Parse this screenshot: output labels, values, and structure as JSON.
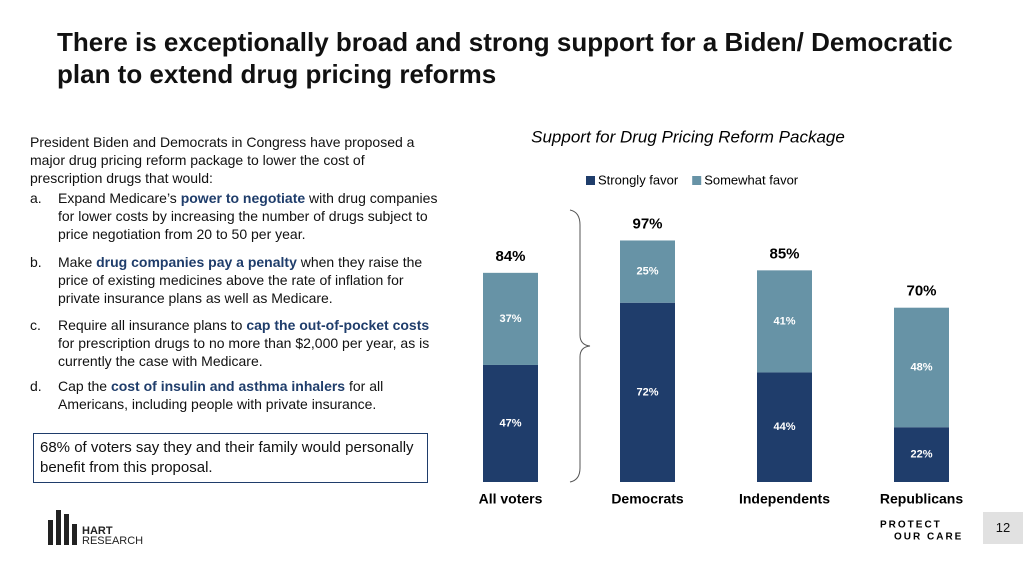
{
  "slide": {
    "title": "There is exceptionally broad and strong support for a Biden/ Democratic plan to extend drug pricing reforms",
    "intro": "President Biden and Democrats in Congress have proposed a major drug pricing reform package to lower the cost of prescription drugs that would:",
    "items": [
      {
        "marker": "a.",
        "parts": [
          "Expand Medicare’s ",
          "power to negotiate",
          " with drug companies for lower costs by increasing the number of drugs subject to price negotiation from 20 to 50 per year."
        ]
      },
      {
        "marker": "b.",
        "parts": [
          "Make ",
          "drug companies pay a penalty",
          " when they raise the price of existing medicines above the rate of inflation for private insurance plans as well as Medicare."
        ]
      },
      {
        "marker": "c.",
        "parts": [
          "Require all insurance plans to ",
          "cap the out-of-pocket costs",
          " for prescription drugs to no more than $2,000 per year, as is currently the case with Medicare."
        ]
      },
      {
        "marker": "d.",
        "parts": [
          "Cap the ",
          "cost of insulin and asthma inhalers",
          " for all Americans, including people with private insurance."
        ]
      }
    ],
    "callout": "68% of voters say they and their family would personally benefit from this proposal.",
    "logo_left": [
      "HART",
      "RESEARCH"
    ],
    "logo_right": [
      "PROTECT",
      "OUR CARE"
    ],
    "page_number": "12"
  },
  "chart_data": {
    "type": "stacked_bar",
    "title": "Support for Drug Pricing Reform Package",
    "categories": [
      "All voters",
      "Democrats",
      "Independents",
      "Republicans"
    ],
    "series": [
      {
        "name": "Strongly favor",
        "color": "#1f3d6b",
        "values": [
          47,
          72,
          44,
          22
        ],
        "value_labels": [
          "47%",
          "72%",
          "44%",
          "22%"
        ]
      },
      {
        "name": "Somewhat favor",
        "color": "#6793a6",
        "values": [
          37,
          25,
          41,
          48
        ],
        "value_labels": [
          "37%",
          "25%",
          "41%",
          "48%"
        ]
      }
    ],
    "totals": [
      84,
      97,
      85,
      70
    ],
    "total_labels": [
      "84%",
      "97%",
      "85%",
      "70%"
    ],
    "ylim": [
      0,
      100
    ],
    "legend": "top"
  }
}
